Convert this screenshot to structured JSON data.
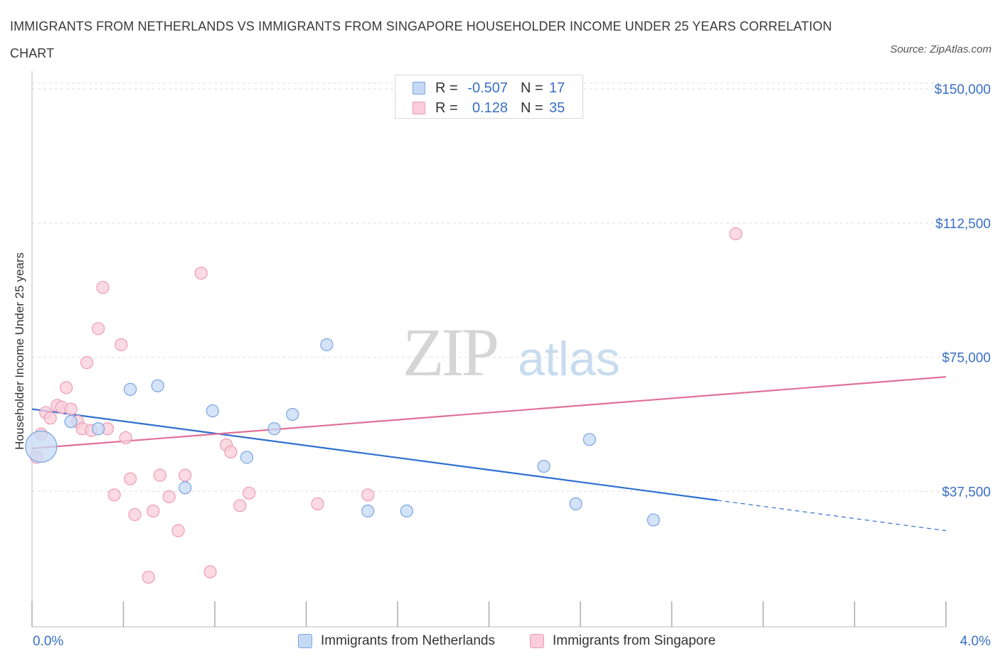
{
  "title": "IMMIGRANTS FROM NETHERLANDS VS IMMIGRANTS FROM SINGAPORE HOUSEHOLDER INCOME UNDER 25 YEARS CORRELATION CHART",
  "source": "Source: ZipAtlas.com",
  "watermark": {
    "zip": "ZIP",
    "atlas": "atlas"
  },
  "legend": {
    "netherlands": {
      "r_label": "R =",
      "r_value": "-0.507",
      "n_label": "N =",
      "n_value": "17"
    },
    "singapore": {
      "r_label": "R =",
      "r_value": "0.128",
      "n_label": "N =",
      "n_value": "35"
    }
  },
  "colors": {
    "netherlands_fill": "#c5d9f5",
    "netherlands_stroke": "#7aa5e0",
    "netherlands_line": "#2f6fd0",
    "singapore_fill": "#f9cddb",
    "singapore_stroke": "#ee9ab4",
    "singapore_line": "#e0709a",
    "axis_label": "#3a6fc4",
    "grid": "#dddddd"
  },
  "chart_data": {
    "type": "scatter",
    "title": "IMMIGRANTS FROM NETHERLANDS VS IMMIGRANTS FROM SINGAPORE HOUSEHOLDER INCOME UNDER 25 YEARS CORRELATION CHART",
    "xlabel": "",
    "ylabel": "Householder Income Under 25 years",
    "xlim": [
      0,
      4.0
    ],
    "ylim": [
      0,
      155000
    ],
    "x_tick_labels": [
      "0.0%",
      "4.0%"
    ],
    "y_ticks": [
      37500,
      75000,
      112500,
      150000
    ],
    "y_tick_labels": [
      "$37,500",
      "$75,000",
      "$112,500",
      "$150,000"
    ],
    "grid": "horizontal dashed",
    "legend_position": "top-center",
    "series": [
      {
        "name": "Immigrants from Netherlands",
        "points": [
          {
            "x": 0.04,
            "y": 50000,
            "size": "large"
          },
          {
            "x": 0.17,
            "y": 57000
          },
          {
            "x": 0.29,
            "y": 55000
          },
          {
            "x": 0.43,
            "y": 66000
          },
          {
            "x": 0.55,
            "y": 67000
          },
          {
            "x": 0.67,
            "y": 38500
          },
          {
            "x": 0.79,
            "y": 60000
          },
          {
            "x": 0.94,
            "y": 47000
          },
          {
            "x": 1.06,
            "y": 55000
          },
          {
            "x": 1.14,
            "y": 59000
          },
          {
            "x": 1.29,
            "y": 78500
          },
          {
            "x": 1.47,
            "y": 32000
          },
          {
            "x": 1.64,
            "y": 32000
          },
          {
            "x": 2.24,
            "y": 44500
          },
          {
            "x": 2.38,
            "y": 34000
          },
          {
            "x": 2.44,
            "y": 52000
          },
          {
            "x": 2.72,
            "y": 29500
          }
        ],
        "trend": {
          "x_start": 0.0,
          "y_start": 60500,
          "x_solid_end": 3.0,
          "y_solid_end": 35000,
          "x_end": 4.0,
          "y_end": 26500
        }
      },
      {
        "name": "Immigrants from Singapore",
        "points": [
          {
            "x": 0.02,
            "y": 47000
          },
          {
            "x": 0.04,
            "y": 53500
          },
          {
            "x": 0.06,
            "y": 59500
          },
          {
            "x": 0.08,
            "y": 58000
          },
          {
            "x": 0.11,
            "y": 61500
          },
          {
            "x": 0.13,
            "y": 61000
          },
          {
            "x": 0.15,
            "y": 66500
          },
          {
            "x": 0.17,
            "y": 60500
          },
          {
            "x": 0.2,
            "y": 57000
          },
          {
            "x": 0.22,
            "y": 55000
          },
          {
            "x": 0.24,
            "y": 73500
          },
          {
            "x": 0.26,
            "y": 54500
          },
          {
            "x": 0.29,
            "y": 83000
          },
          {
            "x": 0.31,
            "y": 94500
          },
          {
            "x": 0.33,
            "y": 55000
          },
          {
            "x": 0.36,
            "y": 36500
          },
          {
            "x": 0.39,
            "y": 78500
          },
          {
            "x": 0.41,
            "y": 52500
          },
          {
            "x": 0.43,
            "y": 41000
          },
          {
            "x": 0.45,
            "y": 31000
          },
          {
            "x": 0.51,
            "y": 13500
          },
          {
            "x": 0.53,
            "y": 32000
          },
          {
            "x": 0.56,
            "y": 42000
          },
          {
            "x": 0.6,
            "y": 36000
          },
          {
            "x": 0.64,
            "y": 26500
          },
          {
            "x": 0.67,
            "y": 42000
          },
          {
            "x": 0.74,
            "y": 98500
          },
          {
            "x": 0.78,
            "y": 15000
          },
          {
            "x": 0.85,
            "y": 50500
          },
          {
            "x": 0.87,
            "y": 48500
          },
          {
            "x": 0.91,
            "y": 33500
          },
          {
            "x": 0.95,
            "y": 37000
          },
          {
            "x": 1.25,
            "y": 34000
          },
          {
            "x": 1.47,
            "y": 36500
          },
          {
            "x": 3.08,
            "y": 109500
          }
        ],
        "trend": {
          "x_start": 0.0,
          "y_start": 49500,
          "x_end": 4.0,
          "y_end": 69500
        }
      }
    ]
  },
  "bottom_legend": [
    "Immigrants from Netherlands",
    "Immigrants from Singapore"
  ]
}
